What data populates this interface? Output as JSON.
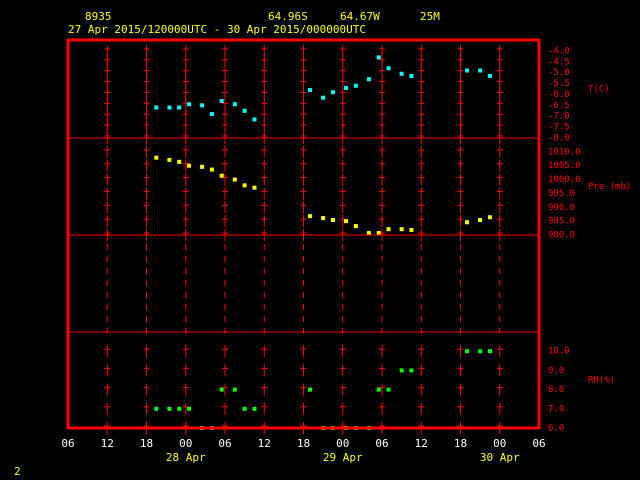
{
  "header": {
    "station": "8935",
    "lat": "64.96S",
    "lon": "64.67W",
    "elev": "25M",
    "period": "27 Apr 2015/120000UTC - 30 Apr 2015/000000UTC"
  },
  "footer": "2",
  "x_axis": {
    "xlim": [
      "2015-04-27T06:00",
      "2015-04-30T06:00"
    ],
    "xticks": [
      {
        "value": "2015-04-27T06:00",
        "label": "06"
      },
      {
        "value": "2015-04-27T12:00",
        "label": "12"
      },
      {
        "value": "2015-04-27T18:00",
        "label": "18"
      },
      {
        "value": "2015-04-28T00:00",
        "label": "00"
      },
      {
        "value": "2015-04-28T06:00",
        "label": "06"
      },
      {
        "value": "2015-04-28T12:00",
        "label": "12"
      },
      {
        "value": "2015-04-28T18:00",
        "label": "18"
      },
      {
        "value": "2015-04-29T00:00",
        "label": "00"
      },
      {
        "value": "2015-04-29T06:00",
        "label": "06"
      },
      {
        "value": "2015-04-29T12:00",
        "label": "12"
      },
      {
        "value": "2015-04-29T18:00",
        "label": "18"
      },
      {
        "value": "2015-04-30T00:00",
        "label": "00"
      },
      {
        "value": "2015-04-30T06:00",
        "label": "06"
      }
    ],
    "date_labels": [
      {
        "value": "2015-04-28T00:00",
        "label": "28 Apr"
      },
      {
        "value": "2015-04-29T00:00",
        "label": "29 Apr"
      },
      {
        "value": "2015-04-30T00:00",
        "label": "30 Apr"
      }
    ]
  },
  "chart_data": [
    {
      "type": "scatter",
      "ylabel": "T(C)",
      "color": "#00ffff",
      "ylim": [
        -8,
        -3.5
      ],
      "yticks": [
        {
          "value": -4,
          "label": "-4.0"
        },
        -4.5,
        {
          "value": -5,
          "label": "-5.0"
        },
        -5.5,
        {
          "value": -6,
          "label": "-6.0"
        },
        -6.5,
        {
          "value": -7,
          "label": "-7.0"
        },
        -7.5,
        {
          "value": -8,
          "label": "-8.0"
        }
      ],
      "x": [
        "2015-04-27T19:30",
        "2015-04-27T21:30",
        "2015-04-27T23:00",
        "2015-04-28T00:30",
        "2015-04-28T02:30",
        "2015-04-28T04:00",
        "2015-04-28T05:30",
        "2015-04-28T07:30",
        "2015-04-28T09:00",
        "2015-04-28T10:30",
        "2015-04-28T19:00",
        "2015-04-28T21:00",
        "2015-04-28T22:30",
        "2015-04-29T00:30",
        "2015-04-29T02:00",
        "2015-04-29T04:00",
        "2015-04-29T05:30",
        "2015-04-29T07:00",
        "2015-04-29T09:00",
        "2015-04-29T10:30",
        "2015-04-29T19:00",
        "2015-04-29T21:00",
        "2015-04-29T22:30"
      ],
      "values": [
        -6.6,
        -6.6,
        -6.6,
        -6.45,
        -6.5,
        -6.9,
        -6.3,
        -6.45,
        -6.75,
        -7.15,
        -5.8,
        -6.15,
        -5.9,
        -5.7,
        -5.6,
        -5.3,
        -4.3,
        -4.8,
        -5.05,
        -5.15,
        -4.9,
        -4.9,
        -5.15
      ]
    },
    {
      "type": "scatter",
      "ylabel": "Pre (mb)",
      "color": "#ffff00",
      "ylim": [
        980,
        1015
      ],
      "yticks": [
        {
          "value": 1010,
          "label": "1010.0"
        },
        {
          "value": 1005,
          "label": "1005.0"
        },
        {
          "value": 1000,
          "label": "1000.0"
        },
        {
          "value": 995,
          "label": "995.0"
        },
        {
          "value": 990,
          "label": "990.0"
        },
        {
          "value": 985,
          "label": "985.0"
        },
        {
          "value": 980,
          "label": "980.0"
        }
      ],
      "x": [
        "2015-04-27T19:30",
        "2015-04-27T21:30",
        "2015-04-27T23:00",
        "2015-04-28T00:30",
        "2015-04-28T02:30",
        "2015-04-28T04:00",
        "2015-04-28T05:30",
        "2015-04-28T07:30",
        "2015-04-28T09:00",
        "2015-04-28T10:30",
        "2015-04-28T19:00",
        "2015-04-28T21:00",
        "2015-04-28T22:30",
        "2015-04-29T00:30",
        "2015-04-29T02:00",
        "2015-04-29T04:00",
        "2015-04-29T05:30",
        "2015-04-29T07:00",
        "2015-04-29T09:00",
        "2015-04-29T10:30",
        "2015-04-29T19:00",
        "2015-04-29T21:00",
        "2015-04-29T22:30"
      ],
      "values": [
        1007.9,
        1007.1,
        1006.4,
        1005,
        1004.6,
        1003.6,
        1001.4,
        1000,
        997.9,
        997.1,
        986.8,
        986.1,
        985.4,
        985,
        983.2,
        980.7,
        980.7,
        982.1,
        982.1,
        981.8,
        984.6,
        985.4,
        986.4
      ]
    },
    {
      "type": "scatter",
      "ylabel": "RH(%)",
      "color": "#00ff00",
      "ylim": [
        6,
        11
      ],
      "yticks": [
        {
          "value": 10,
          "label": "10.0"
        },
        {
          "value": 9,
          "label": "9.0"
        },
        {
          "value": 8,
          "label": "8.0"
        },
        {
          "value": 7,
          "label": "7.0"
        },
        {
          "value": 6,
          "label": "6.0"
        }
      ],
      "x": [
        "2015-04-27T19:30",
        "2015-04-27T21:30",
        "2015-04-27T23:00",
        "2015-04-28T00:30",
        "2015-04-28T02:30",
        "2015-04-28T04:00",
        "2015-04-28T05:30",
        "2015-04-28T07:30",
        "2015-04-28T09:00",
        "2015-04-28T10:30",
        "2015-04-28T19:00",
        "2015-04-28T21:00",
        "2015-04-28T22:30",
        "2015-04-29T00:30",
        "2015-04-29T02:00",
        "2015-04-29T04:00",
        "2015-04-29T05:30",
        "2015-04-29T07:00",
        "2015-04-29T09:00",
        "2015-04-29T10:30",
        "2015-04-29T19:00",
        "2015-04-29T21:00",
        "2015-04-29T22:30"
      ],
      "values": [
        7,
        7,
        7,
        7,
        6,
        6,
        8,
        8,
        7,
        7,
        8,
        6,
        6,
        6,
        6,
        6,
        8,
        8,
        9,
        9,
        10,
        10,
        10
      ]
    }
  ]
}
